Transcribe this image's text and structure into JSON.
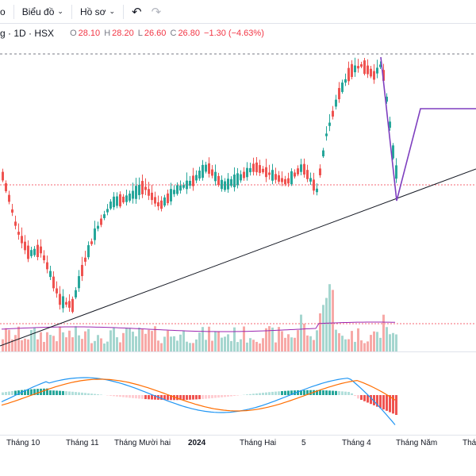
{
  "toolbar": {
    "item_partial": "o",
    "chart_menu": "Biểu đồ",
    "profile_menu": "Hồ sơ"
  },
  "legend": {
    "symbol_partial": "g",
    "interval": "1D",
    "exchange": "HSX",
    "open_label": "O",
    "open": "28.10",
    "high_label": "H",
    "high": "28.20",
    "low_label": "L",
    "low": "26.60",
    "close_label": "C",
    "close": "26.80",
    "change": "−1.30 (−4.63%)"
  },
  "colors": {
    "up": "#26a69a",
    "down": "#ef5350",
    "trendline": "#131722",
    "projection": "#7e3fbf",
    "ma_line": "#9c27b0",
    "macd_line": "#2196f3",
    "signal_line": "#ff6d00"
  },
  "x_axis_labels": [
    "Tháng 10",
    "Tháng 11",
    "Tháng Mười hai",
    "2024",
    "Tháng Hai",
    "5",
    "Tháng 4",
    "Tháng Năm",
    "Thán"
  ]
}
